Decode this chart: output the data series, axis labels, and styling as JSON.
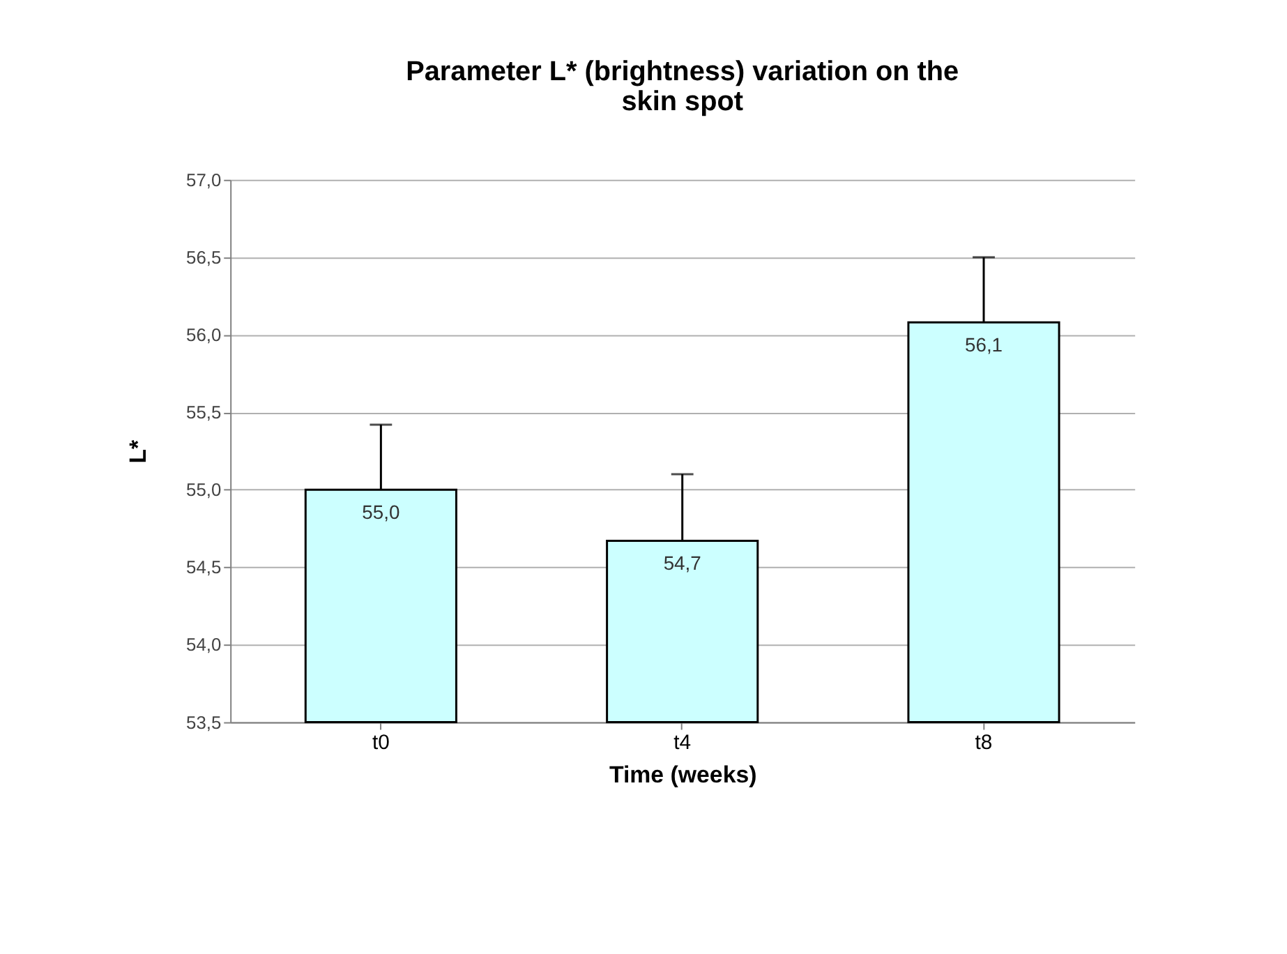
{
  "chart_data": {
    "type": "bar",
    "title": [
      "Parameter L* (brightness) variation on the",
      "skin spot"
    ],
    "xlabel": "Time (weeks)",
    "ylabel": "L*",
    "categories": [
      "t0",
      "t4",
      "t8"
    ],
    "values": [
      55.0,
      54.67,
      56.08
    ],
    "color": "#ccffff",
    "errors": [
      [
        55.0,
        55.42
      ],
      [
        54.67,
        55.1
      ],
      [
        56.08,
        56.5
      ]
    ],
    "value_labels": [
      "55,0",
      "54,7",
      "56,1"
    ],
    "ylim": [
      53.5,
      57.0
    ],
    "yticks": [
      {
        "value": 53.5,
        "label": "53,5"
      },
      {
        "value": 54.0,
        "label": "54,0"
      },
      {
        "value": 54.5,
        "label": "54,5"
      },
      {
        "value": 55.0,
        "label": "55,0"
      },
      {
        "value": 55.5,
        "label": "55,5"
      },
      {
        "value": 56.0,
        "label": "56,0"
      },
      {
        "value": 56.5,
        "label": "56,5"
      },
      {
        "value": 57.0,
        "label": "57,0"
      }
    ],
    "grid": "y"
  }
}
